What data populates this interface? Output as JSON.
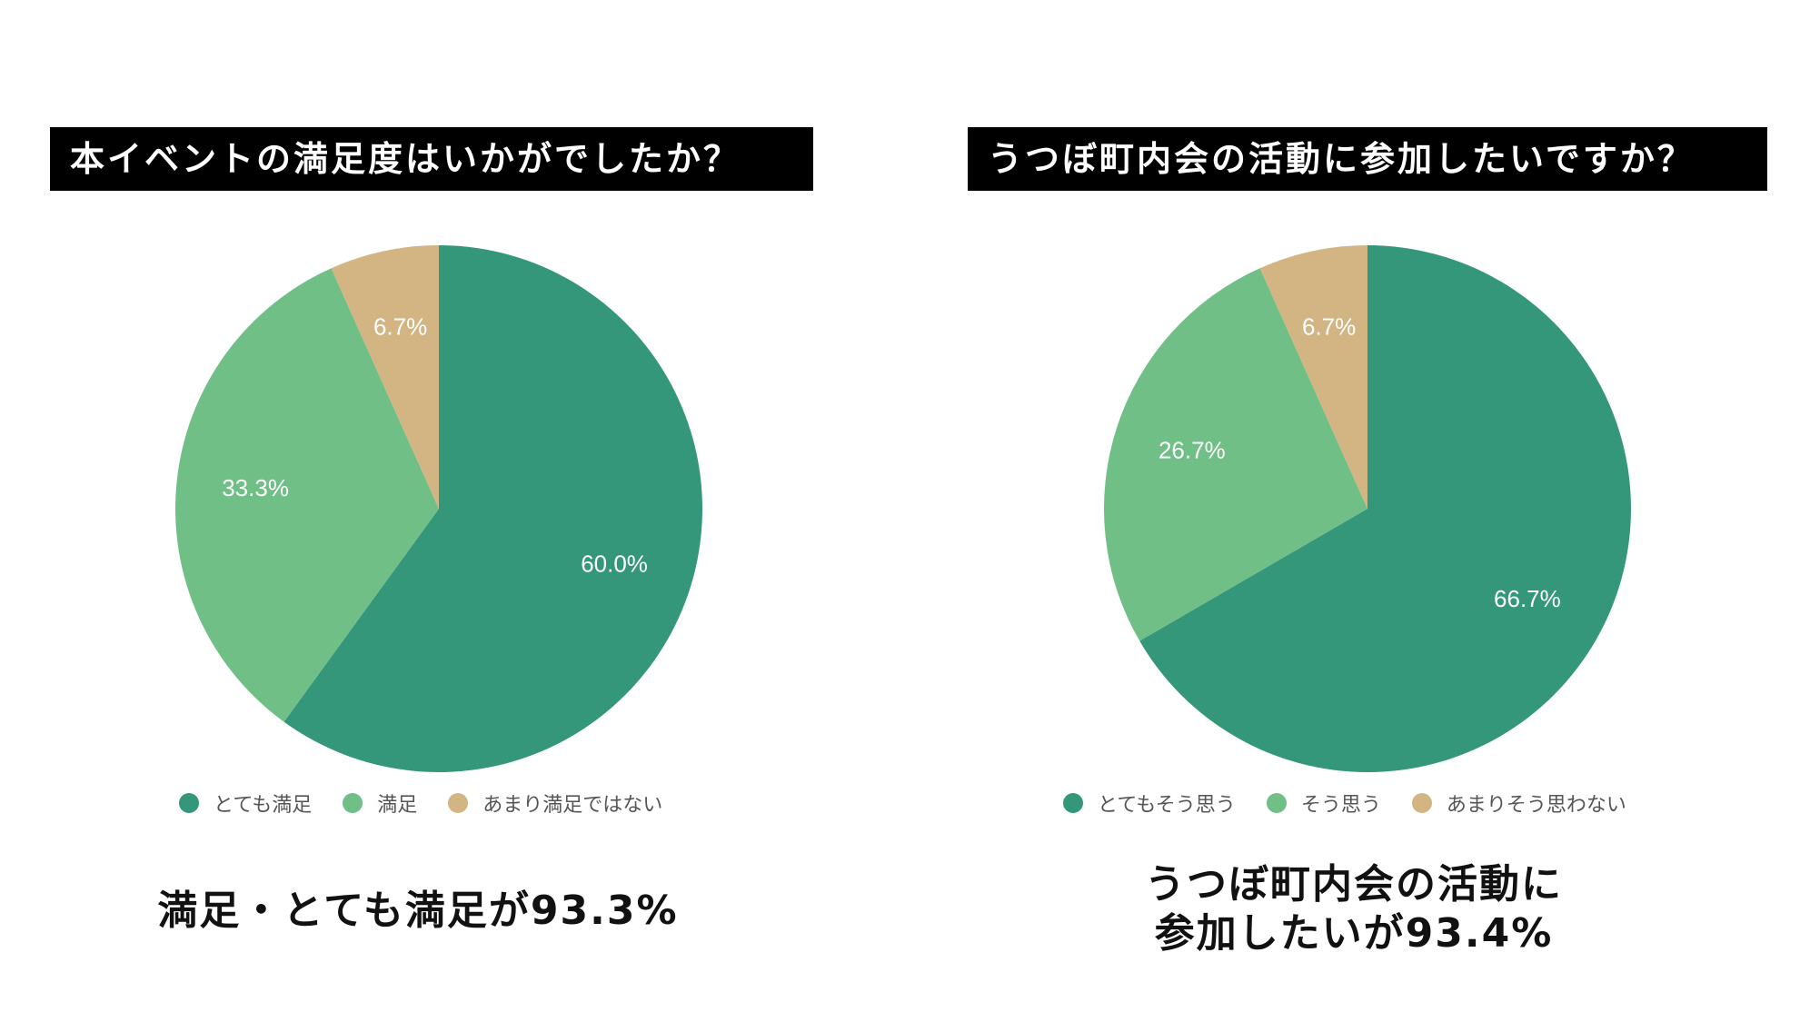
{
  "chart_data": [
    {
      "type": "pie",
      "title": "本イベントの満足度はいかがでしたか？",
      "categories": [
        "とても満足",
        "満足",
        "あまり満足ではない"
      ],
      "values": [
        60.0,
        33.3,
        6.7
      ],
      "labels": [
        "60.0%",
        "33.3%",
        "6.7%"
      ],
      "colors": [
        "#34977a",
        "#6fbf87",
        "#d2b583"
      ],
      "legend_position": "bottom",
      "summary": [
        "満足・とても満足が93.3%"
      ]
    },
    {
      "type": "pie",
      "title": "うつぼ町内会の活動に参加したいですか？",
      "categories": [
        "とてもそう思う",
        "そう思う",
        "あまりそう思わない"
      ],
      "values": [
        66.7,
        26.7,
        6.7
      ],
      "labels": [
        "66.7%",
        "26.7%",
        "6.7%"
      ],
      "colors": [
        "#34977a",
        "#6fbf87",
        "#d2b583"
      ],
      "legend_position": "bottom",
      "summary": [
        "うつぼ町内会の活動に",
        "参加したいが93.4%"
      ]
    }
  ]
}
